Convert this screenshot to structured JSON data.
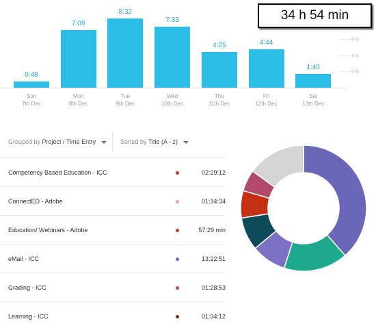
{
  "summary": {
    "total": "34 h 54 min"
  },
  "chart_data": {
    "type": "bar",
    "unit": "hours",
    "categories": [
      "Sun",
      "Mon",
      "Tue",
      "Wed",
      "Thu",
      "Fri",
      "Sat"
    ],
    "dates": [
      "7th Dec",
      "8th Dec",
      "9th Dec",
      "10th Dec",
      "11th Dec",
      "12th Dec",
      "13th Dec"
    ],
    "values": [
      0.8,
      7.15,
      8.53,
      7.55,
      4.42,
      4.73,
      1.67
    ],
    "data_labels": [
      "0:48",
      "7:09",
      "8:32",
      "7:33",
      "4:25",
      "4:44",
      "1:40"
    ],
    "y_ticks": [
      {
        "value": 2,
        "label": "2 h"
      },
      {
        "value": 4,
        "label": "4 h"
      },
      {
        "value": 6,
        "label": "6 h"
      }
    ],
    "ylim": [
      0,
      10
    ],
    "bar_color": "#2bbde6"
  },
  "controls": {
    "group_prefix": "Grouped by",
    "group_value": "Project / Time Entry",
    "sort_prefix": "Sorted by",
    "sort_value": "Title (A - z)"
  },
  "entries": [
    {
      "title": "Competency Based Education - ICC",
      "duration": "02:29:12",
      "color": "#c0392b"
    },
    {
      "title": "ConnectED - Adobe",
      "duration": "01:34:34",
      "color": "#e8a0b4"
    },
    {
      "title": "Education/ Webinars - Adobe",
      "duration": "57:29 min",
      "color": "#c0392b"
    },
    {
      "title": "eMail - ICC",
      "duration": "13:22:51",
      "color": "#6b67b8"
    },
    {
      "title": "Grading - ICC",
      "duration": "01:28:53",
      "color": "#b24a6a"
    },
    {
      "title": "Learning - ICC",
      "duration": "01:34:12",
      "color": "#7a2e1a"
    }
  ],
  "donut_chart": {
    "segments": [
      {
        "color": "#6b67b8",
        "value": 38.5
      },
      {
        "color": "#1ea98e",
        "value": 16.5
      },
      {
        "color": "#7a70c4",
        "value": 9.0
      },
      {
        "color": "#0f4a5a",
        "value": 8.5
      },
      {
        "color": "#c63012",
        "value": 7.0
      },
      {
        "color": "#b24a6a",
        "value": 5.5
      },
      {
        "color": "#d5d5d5",
        "value": 15.0
      }
    ]
  }
}
